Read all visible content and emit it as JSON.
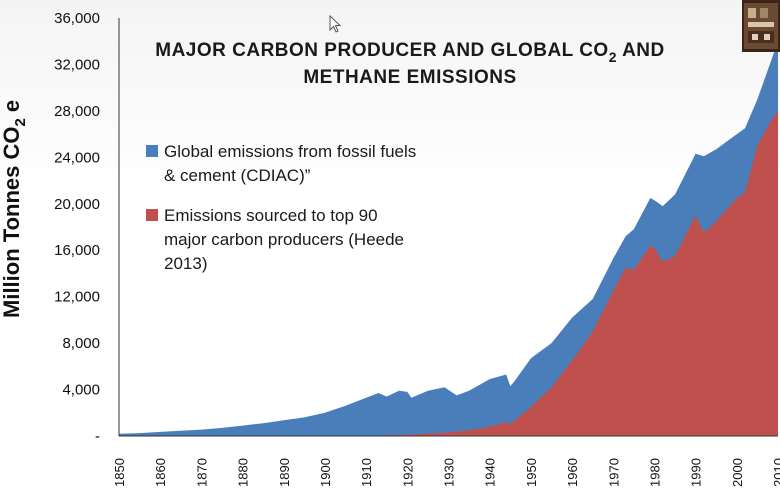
{
  "chart_data": {
    "type": "area",
    "title_line1": "MAJOR CARBON PRODUCER AND GLOBAL CO",
    "title_sub": "2",
    "title_line1_end": " AND",
    "title_line2": "METHANE EMISSIONS",
    "ylabel": "Million Tonnes CO",
    "ylabel_sub": "2",
    "ylabel_end": " e",
    "ylim": [
      0,
      36000
    ],
    "xlim": [
      1850,
      2010
    ],
    "y_ticks": [
      {
        "value": 0,
        "label": "-"
      },
      {
        "value": 4000,
        "label": "4,000"
      },
      {
        "value": 8000,
        "label": "8,000"
      },
      {
        "value": 12000,
        "label": "12,000"
      },
      {
        "value": 16000,
        "label": "16,000"
      },
      {
        "value": 20000,
        "label": "20,000"
      },
      {
        "value": 24000,
        "label": "24,000"
      },
      {
        "value": 28000,
        "label": "28,000"
      },
      {
        "value": 32000,
        "label": "32,000"
      },
      {
        "value": 36000,
        "label": "36,000"
      }
    ],
    "x_ticks": [
      "1850",
      "1860",
      "1870",
      "1880",
      "1890",
      "1900",
      "1910",
      "1920",
      "1930",
      "1940",
      "1950",
      "1960",
      "1970",
      "1980",
      "1990",
      "2000",
      "2010"
    ],
    "series": [
      {
        "name": "Global emissions from fossil fuels & cement (CDIAC)”",
        "legend_lines": [
          "Global emissions from fossil fuels",
          "& cement (CDIAC)”"
        ],
        "color": "#4a7ebb",
        "x": [
          1850,
          1855,
          1860,
          1865,
          1870,
          1875,
          1880,
          1885,
          1890,
          1895,
          1900,
          1905,
          1910,
          1913,
          1915,
          1918,
          1920,
          1921,
          1925,
          1929,
          1932,
          1935,
          1940,
          1944,
          1945,
          1946,
          1950,
          1955,
          1960,
          1965,
          1970,
          1973,
          1975,
          1979,
          1980,
          1982,
          1985,
          1990,
          1992,
          1995,
          2000,
          2002,
          2005,
          2008,
          2010
        ],
        "values": [
          200,
          250,
          350,
          450,
          550,
          700,
          900,
          1100,
          1350,
          1600,
          2000,
          2600,
          3300,
          3700,
          3400,
          3900,
          3800,
          3300,
          3900,
          4200,
          3500,
          3900,
          4900,
          5300,
          4300,
          4700,
          6700,
          8000,
          10200,
          11800,
          15300,
          17200,
          17800,
          20500,
          20300,
          19800,
          20800,
          24300,
          24100,
          24700,
          26000,
          26500,
          29000,
          32000,
          34000
        ]
      },
      {
        "name": "Emissions sourced  to top 90 major carbon producers (Heede 2013)",
        "legend_lines": [
          "Emissions sourced  to top 90",
          "major carbon producers (Heede",
          "2013)"
        ],
        "color": "#c0504d",
        "x": [
          1850,
          1900,
          1910,
          1920,
          1930,
          1935,
          1940,
          1944,
          1945,
          1950,
          1955,
          1960,
          1965,
          1970,
          1973,
          1975,
          1979,
          1980,
          1982,
          1985,
          1990,
          1992,
          1995,
          2000,
          2002,
          2005,
          2008,
          2010
        ],
        "values": [
          0,
          0,
          30,
          100,
          300,
          500,
          800,
          1200,
          1000,
          2500,
          4200,
          6500,
          9000,
          12500,
          14500,
          14300,
          16400,
          16200,
          15000,
          15500,
          19000,
          17500,
          18500,
          20500,
          21000,
          25000,
          27000,
          28000
        ]
      }
    ],
    "grid": false,
    "legend_position": "top-left, inside plot"
  }
}
